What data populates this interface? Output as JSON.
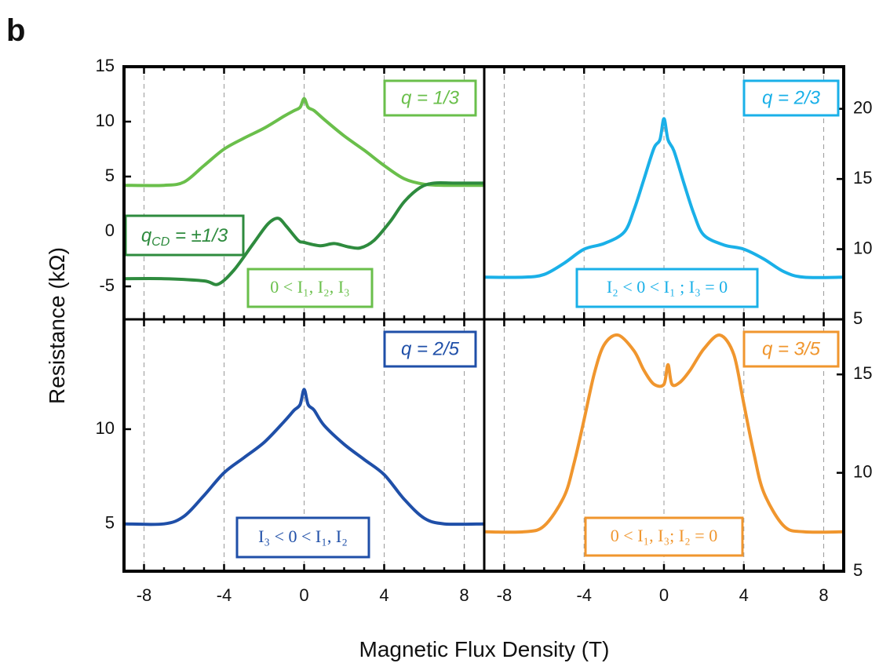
{
  "panel_letter": "b",
  "xlabel": "Magnetic Flux Density (T)",
  "ylabel": "Resistance (kΩ)",
  "chart_data": [
    {
      "type": "line",
      "position": "top-left",
      "xlim": [
        -9,
        9
      ],
      "ylim": [
        -8,
        15
      ],
      "xticks": [
        -8,
        -4,
        0,
        4,
        8
      ],
      "yticks": [
        -5,
        0,
        5,
        10,
        15
      ],
      "ytick_side": "left",
      "vgrid": [
        -8,
        -4,
        0,
        4,
        8
      ],
      "grid": "dashed vertical",
      "series": [
        {
          "name": "q = 1/3",
          "color": "#6abf4b",
          "x": [
            -9,
            -7,
            -6,
            -5,
            -4,
            -3,
            -2,
            -1,
            -0.5,
            -0.2,
            0,
            0.2,
            0.5,
            1,
            2,
            3,
            4,
            5,
            6,
            7,
            9
          ],
          "y": [
            4.2,
            4.2,
            4.5,
            6.0,
            7.5,
            8.5,
            9.4,
            10.5,
            11.0,
            11.3,
            12.1,
            11.3,
            11.0,
            10.2,
            8.7,
            7.4,
            6.0,
            4.8,
            4.3,
            4.2,
            4.2
          ]
        },
        {
          "name": "q_CD = ±1/3",
          "color": "#2e8b3e",
          "x": [
            -9,
            -7,
            -5,
            -4.3,
            -3.5,
            -2.5,
            -1.8,
            -1.3,
            -0.9,
            -0.3,
            0,
            0.8,
            1.5,
            2.2,
            2.8,
            3.5,
            4.3,
            5,
            5.8,
            6.5,
            7.5,
            9
          ],
          "y": [
            -4.3,
            -4.3,
            -4.5,
            -4.8,
            -3.5,
            -1.0,
            0.7,
            1.2,
            0.5,
            -0.8,
            -1.0,
            -1.3,
            -1.1,
            -1.4,
            -1.5,
            -0.8,
            0.9,
            2.7,
            4.0,
            4.4,
            4.4,
            4.4
          ]
        }
      ],
      "labels": {
        "q": "q = 1/3",
        "qcd_main": "q",
        "qcd_sub": "CD",
        "qcd_rest": " = ±1/3",
        "cond": "0 < I₁, I₂, I₃"
      }
    },
    {
      "type": "line",
      "position": "top-right",
      "xlim": [
        -9,
        9
      ],
      "ylim": [
        5,
        23
      ],
      "xticks": [
        -8,
        -4,
        0,
        4,
        8
      ],
      "yticks": [
        5,
        10,
        15,
        20
      ],
      "ytick_side": "right",
      "vgrid": [
        -8,
        -4,
        0,
        4,
        8
      ],
      "grid": "dashed vertical",
      "series": [
        {
          "name": "q = 2/3",
          "color": "#1ab0e8",
          "x": [
            -9,
            -7,
            -6,
            -5,
            -4,
            -3,
            -2,
            -1.5,
            -1,
            -0.5,
            -0.2,
            0,
            0.2,
            0.5,
            1,
            1.5,
            2,
            3,
            4,
            5,
            6,
            7,
            9
          ],
          "y": [
            8.0,
            8.0,
            8.2,
            9.0,
            10.0,
            10.4,
            11.2,
            12.8,
            15.0,
            17.2,
            17.8,
            19.3,
            17.8,
            17.0,
            14.7,
            12.5,
            11.0,
            10.3,
            10.0,
            9.3,
            8.4,
            8.0,
            8.0
          ]
        }
      ],
      "labels": {
        "q": "q = 2/3",
        "cond": "I₂ < 0 < I₁ ; I₃ = 0"
      }
    },
    {
      "type": "line",
      "position": "bottom-left",
      "xlim": [
        -9,
        9
      ],
      "ylim": [
        2.5,
        15.8
      ],
      "xticks": [
        -8,
        -4,
        0,
        4,
        8
      ],
      "yticks": [
        5,
        10
      ],
      "ytick_side": "left",
      "vgrid": [
        -8,
        -4,
        0,
        4,
        8
      ],
      "grid": "dashed vertical",
      "series": [
        {
          "name": "q = 2/5",
          "color": "#1f4fa8",
          "x": [
            -9,
            -7,
            -6,
            -5,
            -4,
            -3,
            -2,
            -1,
            -0.5,
            -0.2,
            0,
            0.2,
            0.5,
            1,
            2,
            3,
            4,
            5,
            6,
            7,
            9
          ],
          "y": [
            5.0,
            5.0,
            5.4,
            6.5,
            7.7,
            8.5,
            9.3,
            10.4,
            11.0,
            11.3,
            12.1,
            11.3,
            11.0,
            10.2,
            9.2,
            8.4,
            7.6,
            6.3,
            5.3,
            5.0,
            5.0
          ]
        }
      ],
      "labels": {
        "q": "q = 2/5",
        "cond": "I₃ < 0 < I₁, I₂"
      }
    },
    {
      "type": "line",
      "position": "bottom-right",
      "xlim": [
        -9,
        9
      ],
      "ylim": [
        5,
        17.8
      ],
      "xticks": [
        -8,
        -4,
        0,
        4,
        8
      ],
      "yticks": [
        5,
        10,
        15
      ],
      "ytick_side": "right",
      "vgrid": [
        -8,
        -4,
        0,
        4,
        8
      ],
      "grid": "dashed vertical",
      "series": [
        {
          "name": "q = 3/5",
          "color": "#f0962e",
          "x": [
            -9,
            -7,
            -6,
            -5,
            -4.5,
            -4,
            -3.5,
            -3,
            -2.3,
            -1.5,
            -1,
            -0.5,
            0,
            0.2,
            0.4,
            0.8,
            1.3,
            2,
            2.8,
            3.5,
            4,
            4.5,
            5,
            6,
            7,
            9
          ],
          "y": [
            7.0,
            7.0,
            7.3,
            8.8,
            10.5,
            12.7,
            15.0,
            16.5,
            17.0,
            16.2,
            15.2,
            14.5,
            14.5,
            15.5,
            14.5,
            14.6,
            15.2,
            16.3,
            17.0,
            16.0,
            13.5,
            11.0,
            9.0,
            7.3,
            7.0,
            7.0
          ]
        }
      ],
      "labels": {
        "q": "q = 3/5",
        "cond": "0 < I₁, I₃; I₂ = 0"
      }
    }
  ]
}
